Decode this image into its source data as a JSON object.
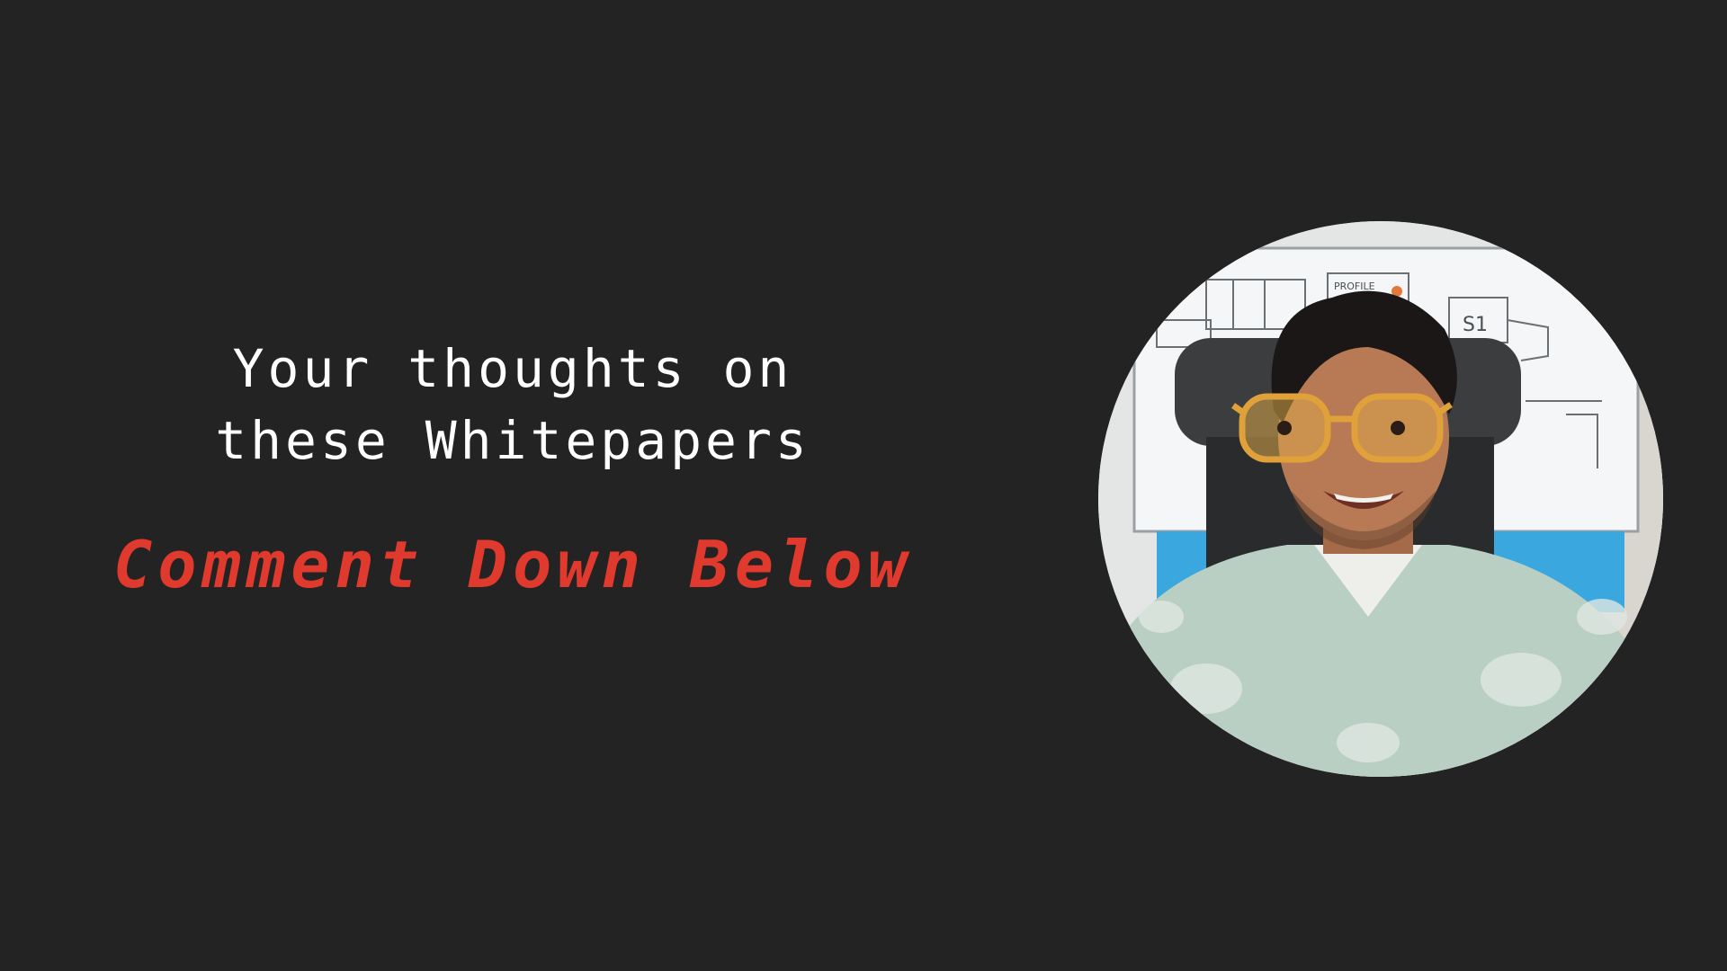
{
  "slide": {
    "heading_line_1": "Your thoughts on",
    "heading_line_2": "these Whitepapers",
    "call_to_action": "Comment Down Below"
  },
  "webcam": {
    "whiteboard_label": "PROFILE",
    "whiteboard_box_label": "S1"
  },
  "colors": {
    "background": "#232323",
    "heading_text": "#ffffff",
    "call_to_action_text": "#e0392d"
  }
}
